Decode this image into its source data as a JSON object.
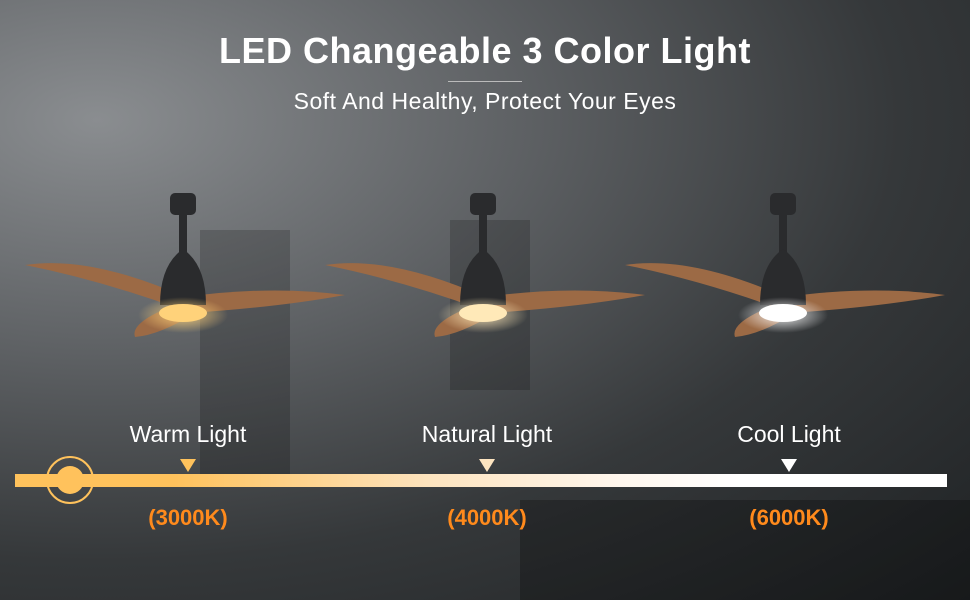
{
  "header": {
    "title": "LED Changeable 3 Color Light",
    "subtitle": "Soft And Healthy, Protect Your Eyes"
  },
  "colors": {
    "bar_warm": "#ffc25c",
    "bar_cool": "#ffffff",
    "temperature_text": "#ff8a1c",
    "blade_wood": "#9c6a45",
    "housing": "#2a2b2d"
  },
  "modes": [
    {
      "label": "Warm Light",
      "temperature": "(3000K)",
      "light_color": "#ffd27a",
      "marker_color": "#ffc25c"
    },
    {
      "label": "Natural Light",
      "temperature": "(4000K)",
      "light_color": "#ffe9b8",
      "marker_color": "#fde4c0"
    },
    {
      "label": "Cool Light",
      "temperature": "(6000K)",
      "light_color": "#ffffff",
      "marker_color": "#ffffff"
    }
  ],
  "slider": {
    "selected_mode": "Warm Light"
  }
}
